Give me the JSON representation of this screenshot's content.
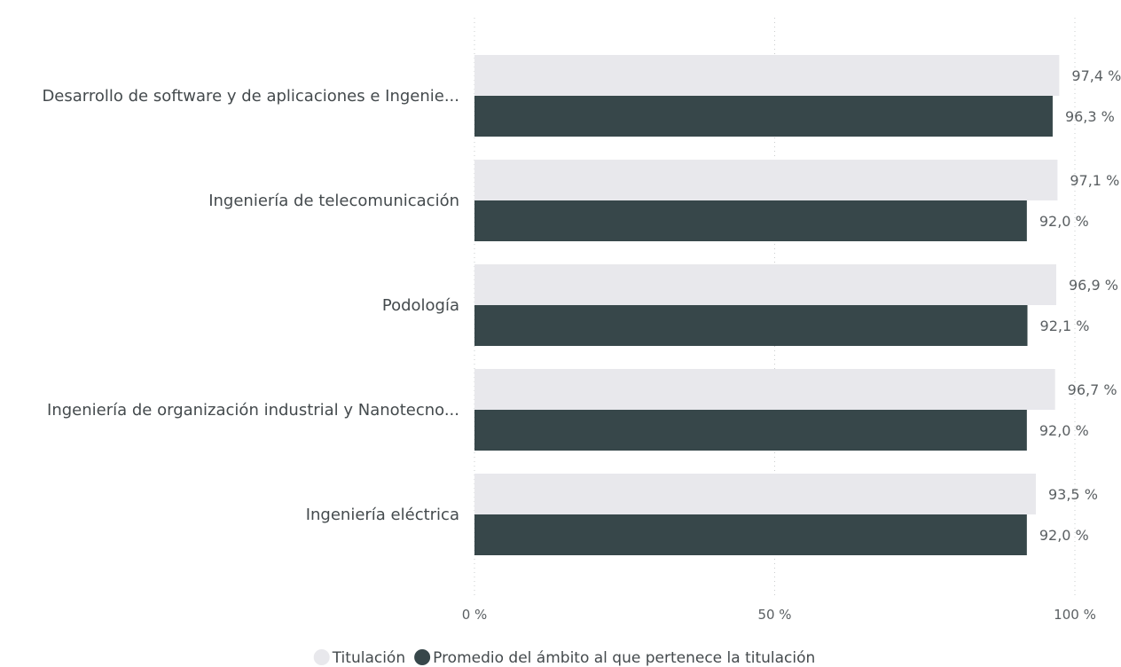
{
  "chart_data": {
    "type": "bar",
    "orientation": "horizontal",
    "categories": [
      "Desarrollo de software y de aplicaciones e Ingenie...",
      "Ingeniería de telecomunicación",
      "Podología",
      "Ingeniería de organización industrial y Nanotecno...",
      "Ingeniería eléctrica"
    ],
    "series": [
      {
        "name": "Titulación",
        "color": "#e8e8ec",
        "values": [
          97.4,
          97.1,
          96.9,
          96.7,
          93.5
        ],
        "labels": [
          "97,4 %",
          "97,1 %",
          "96,9 %",
          "96,7 %",
          "93,5 %"
        ]
      },
      {
        "name": "Promedio del ámbito al que pertenece la titulación",
        "color": "#37474a",
        "values": [
          96.3,
          92.0,
          92.1,
          92.0,
          92.0
        ],
        "labels": [
          "96,3 %",
          "92,0 %",
          "92,1 %",
          "92,0 %",
          "92,0 %"
        ]
      }
    ],
    "xlim": [
      0,
      100
    ],
    "xticks": [
      0,
      50,
      100
    ],
    "xtick_labels": [
      "0 %",
      "50 %",
      "100 %"
    ],
    "grid": true,
    "legend_position": "bottom-center"
  }
}
